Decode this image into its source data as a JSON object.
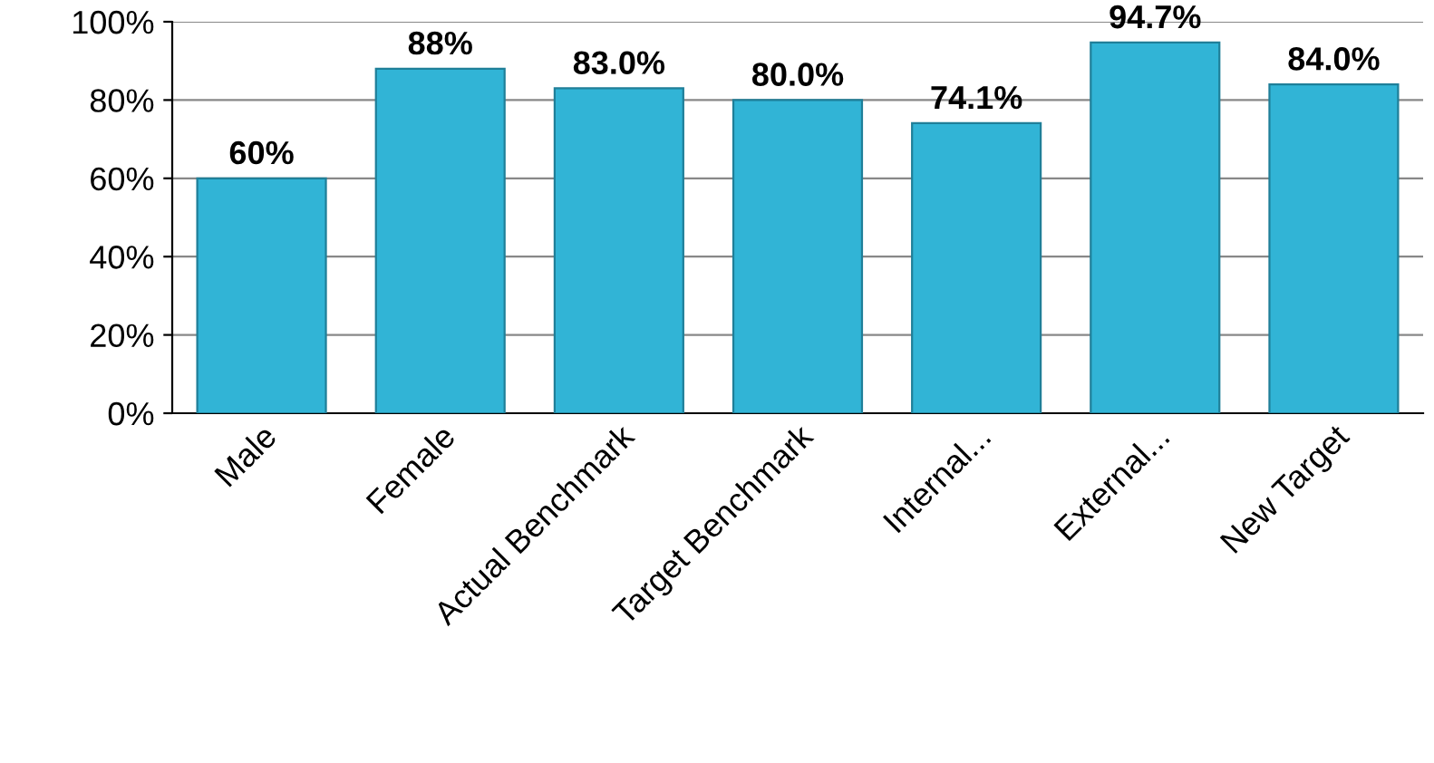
{
  "chart_data": {
    "type": "bar",
    "categories": [
      "Male",
      "Female",
      "Actual Benchmark",
      "Target Benchmark",
      "Internal...",
      "External...",
      "New Target"
    ],
    "values": [
      60,
      88,
      83,
      80,
      74.1,
      94.7,
      84
    ],
    "value_labels": [
      "60%",
      "88%",
      "83.0%",
      "80.0%",
      "74.1%",
      "94.7%",
      "84.0%"
    ],
    "color": "#31b4d6",
    "ylim": [
      0,
      100
    ],
    "yticks": [
      {
        "value": 0,
        "label": "0%"
      },
      {
        "value": 20,
        "label": "20%"
      },
      {
        "value": 40,
        "label": "40%"
      },
      {
        "value": 60,
        "label": "60%"
      },
      {
        "value": 80,
        "label": "80%"
      },
      {
        "value": 100,
        "label": "100%"
      }
    ],
    "grid": "y",
    "legend": false
  }
}
